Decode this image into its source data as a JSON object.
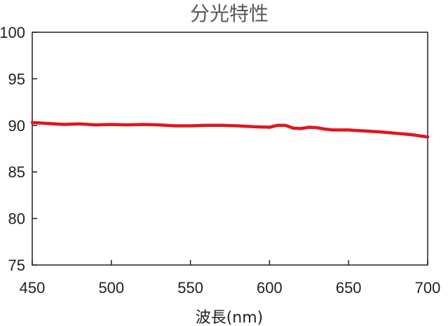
{
  "chart_data": {
    "type": "line",
    "title": "分光特性",
    "xlabel": "波長(nm)",
    "ylabel": "",
    "xlim": [
      450,
      700
    ],
    "ylim": [
      75,
      100
    ],
    "xticks": [
      "450",
      "500",
      "550",
      "600",
      "650",
      "700"
    ],
    "yticks": [
      "75",
      "80",
      "85",
      "90",
      "95",
      "100"
    ],
    "grid": false,
    "colors": {
      "line": "#e0161d",
      "axis": "#231f20"
    },
    "series": [
      {
        "x": [
          450,
          460,
          470,
          480,
          490,
          500,
          510,
          520,
          530,
          540,
          550,
          560,
          570,
          580,
          590,
          600,
          605,
          610,
          615,
          620,
          625,
          630,
          635,
          640,
          650,
          660,
          670,
          680,
          690,
          700
        ],
        "y": [
          90.3,
          90.2,
          90.1,
          90.15,
          90.05,
          90.1,
          90.05,
          90.1,
          90.05,
          89.95,
          89.95,
          90.0,
          90.0,
          89.95,
          89.85,
          89.8,
          90.0,
          90.0,
          89.7,
          89.65,
          89.8,
          89.75,
          89.6,
          89.5,
          89.5,
          89.4,
          89.3,
          89.15,
          89.0,
          88.75
        ]
      }
    ]
  }
}
